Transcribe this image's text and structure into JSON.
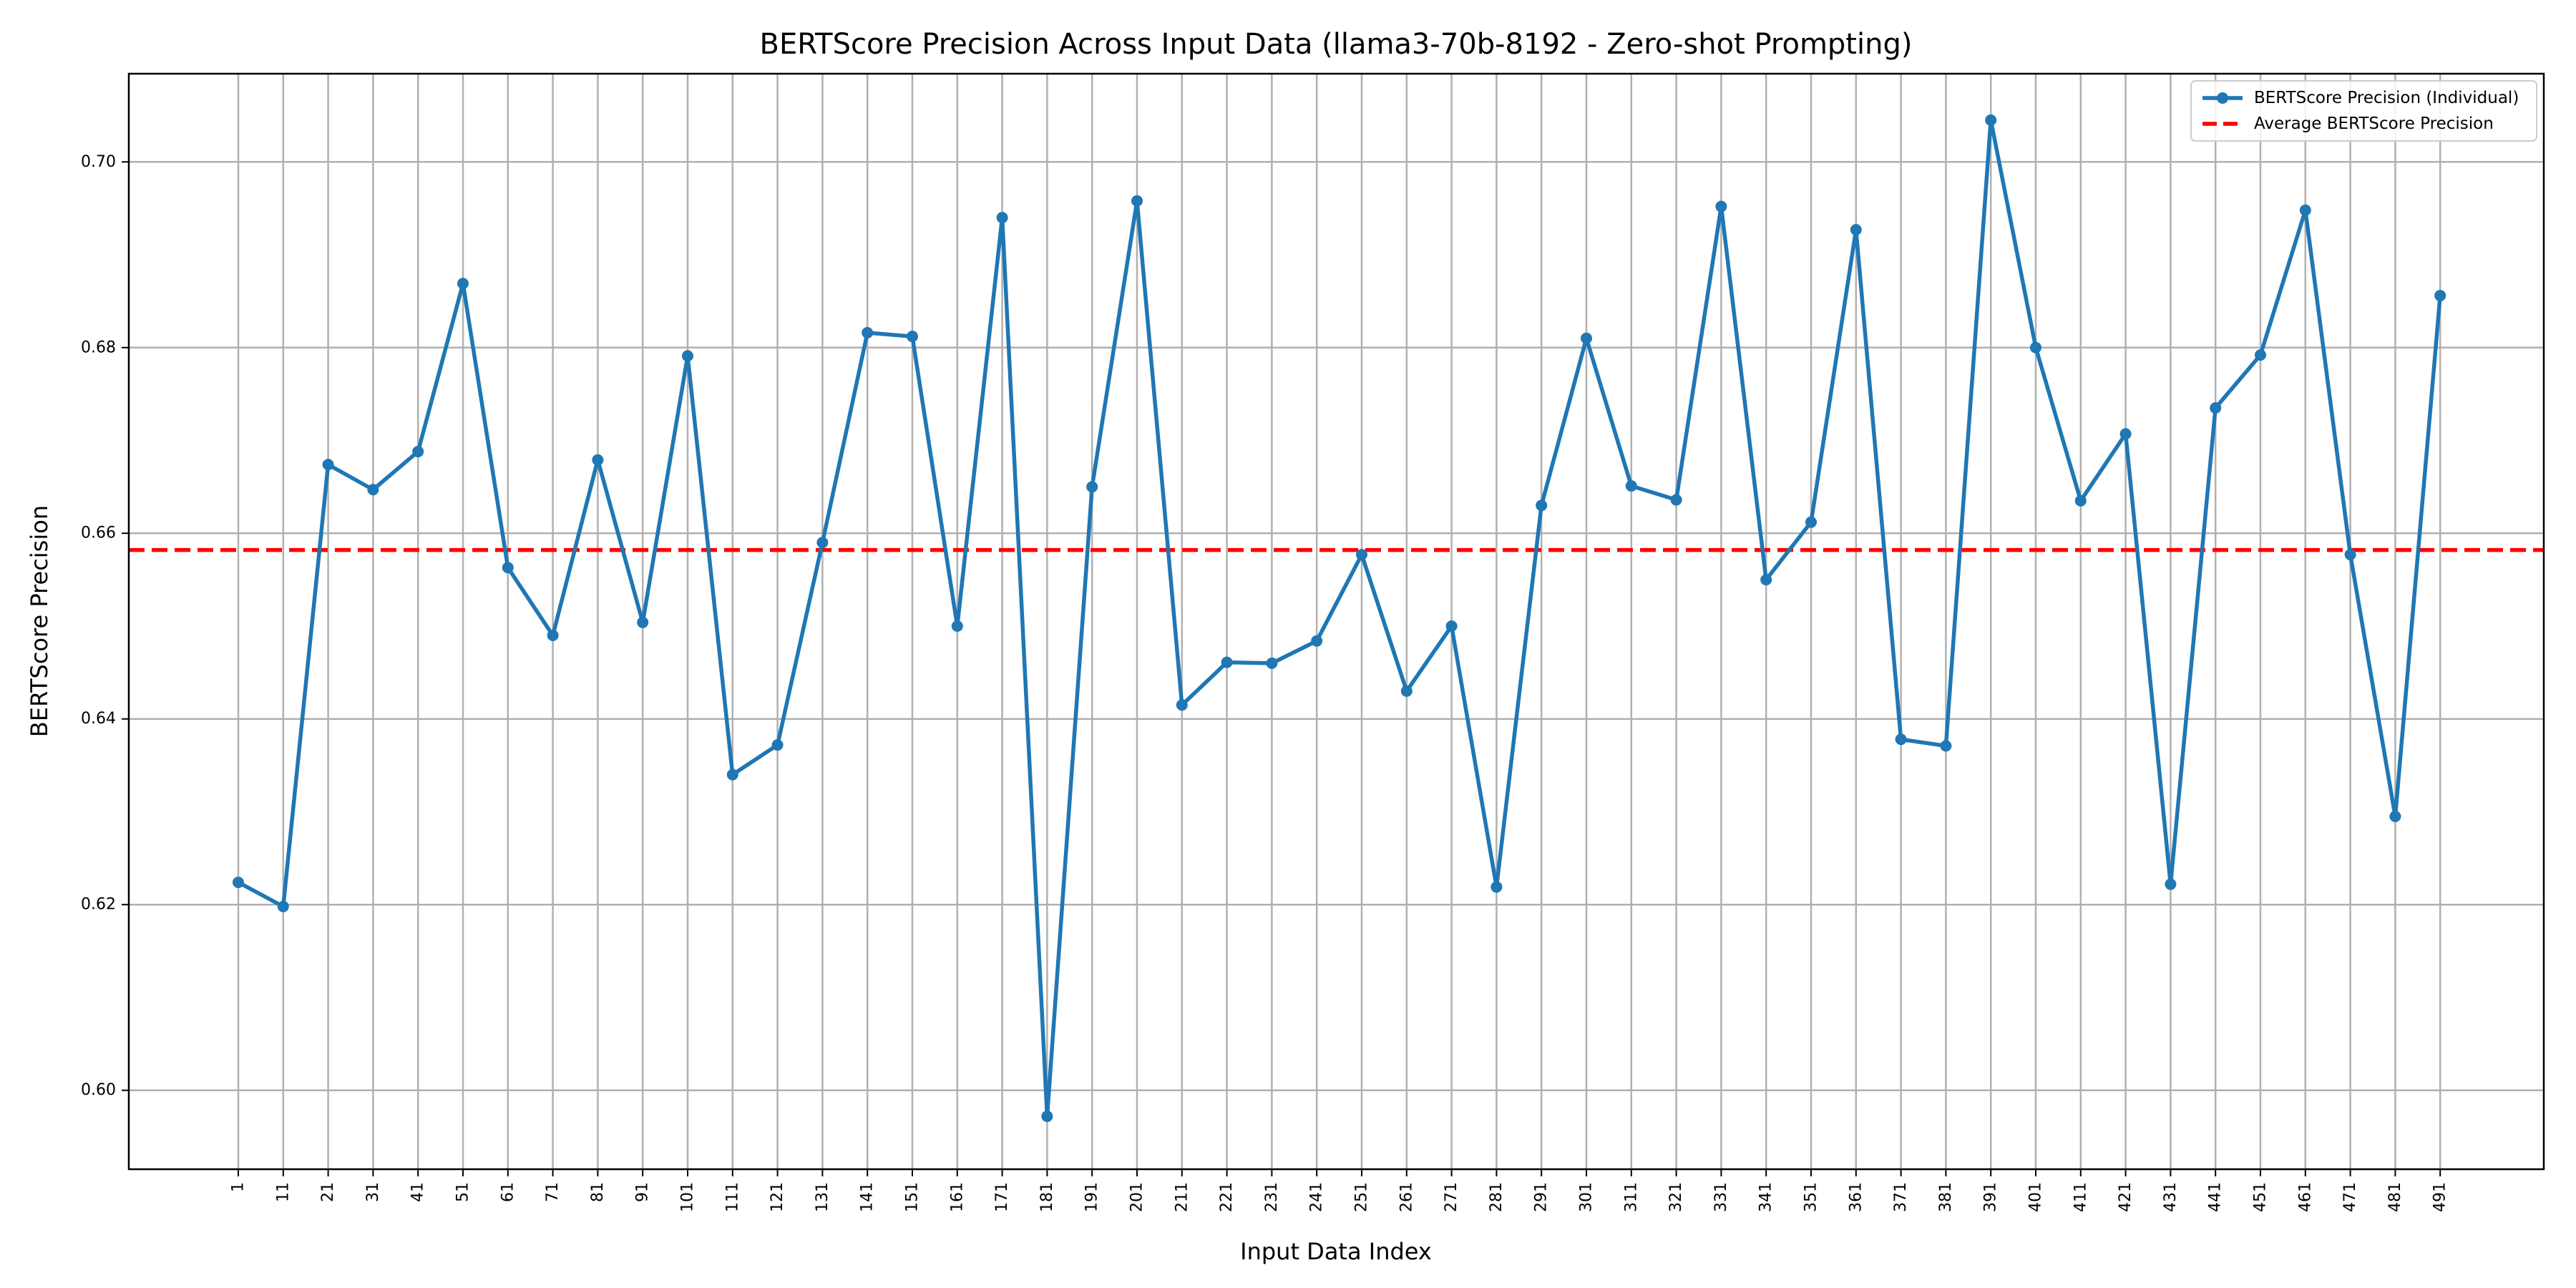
{
  "chart_data": {
    "type": "line",
    "title": "BERTScore Precision Across Input Data (llama3-70b-8192 - Zero-shot Prompting)",
    "xlabel": "Input Data Index",
    "ylabel": "BERTScore Precision",
    "ylim": [
      0.5915,
      0.7095
    ],
    "yticks": [
      0.6,
      0.62,
      0.64,
      0.66,
      0.68,
      0.7
    ],
    "grid": true,
    "legend_position": "top-right",
    "x": [
      1,
      11,
      21,
      31,
      41,
      51,
      61,
      71,
      81,
      91,
      101,
      111,
      121,
      131,
      141,
      151,
      161,
      171,
      181,
      191,
      201,
      211,
      221,
      231,
      241,
      251,
      261,
      271,
      281,
      291,
      301,
      311,
      321,
      331,
      341,
      351,
      361,
      371,
      381,
      391,
      401,
      411,
      421,
      431,
      441,
      451,
      461,
      471,
      481,
      491
    ],
    "series": [
      {
        "name": "BERTScore Precision (Individual)",
        "color": "#1f77b4",
        "style": "solid-with-markers",
        "values": [
          0.6224,
          0.6198,
          0.6674,
          0.6647,
          0.6688,
          0.6869,
          0.6563,
          0.649,
          0.6679,
          0.6504,
          0.6791,
          0.634,
          0.6372,
          0.659,
          0.6816,
          0.6812,
          0.65,
          0.694,
          0.5972,
          0.665,
          0.6958,
          0.6415,
          0.6461,
          0.646,
          0.6484,
          0.6577,
          0.643,
          0.65,
          0.6219,
          0.663,
          0.681,
          0.6651,
          0.6636,
          0.6952,
          0.655,
          0.6612,
          0.6927,
          0.6378,
          0.6371,
          0.7045,
          0.68,
          0.6635,
          0.6707,
          0.6222,
          0.6735,
          0.6792,
          0.6948,
          0.6577,
          0.6295,
          0.6856
        ]
      },
      {
        "name": "Average BERTScore Precision",
        "color": "#ff0000",
        "style": "dashed",
        "constant": 0.6582
      }
    ]
  }
}
